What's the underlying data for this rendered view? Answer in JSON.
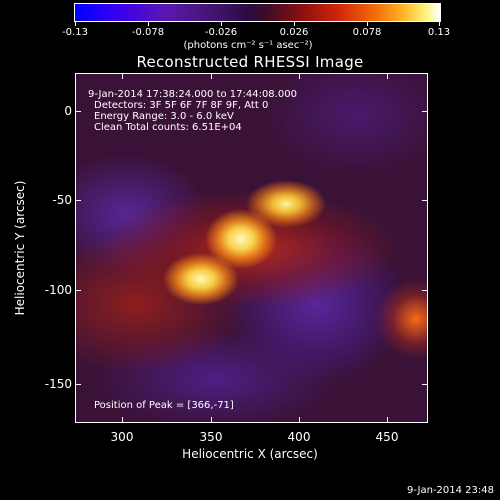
{
  "colorbar": {
    "labels": [
      "-0.13",
      "-0.078",
      "-0.026",
      "0.026",
      "0.078",
      "0.13"
    ],
    "units": "(photons cm⁻² s⁻¹ asec⁻²)"
  },
  "title": "Reconstructed RHESSI Image",
  "info": {
    "time_range": "9-Jan-2014 17:38:24.000 to 17:44:08.000",
    "detectors": "Detectors: 3F 5F 6F 7F 8F 9F, Att 0",
    "energy": "Energy Range: 3.0 - 6.0 keV",
    "clean": "Clean    Total counts: 6.51E+04",
    "peak": "Position of Peak = [366,-71]"
  },
  "axes": {
    "xlabel": "Heliocentric X (arcsec)",
    "ylabel": "Heliocentric Y (arcsec)",
    "x_ticks": [
      "300",
      "350",
      "400",
      "450"
    ],
    "y_ticks": [
      "0",
      "-50",
      "-100",
      "-150"
    ]
  },
  "timestamp": "9-Jan-2014 23:48"
}
